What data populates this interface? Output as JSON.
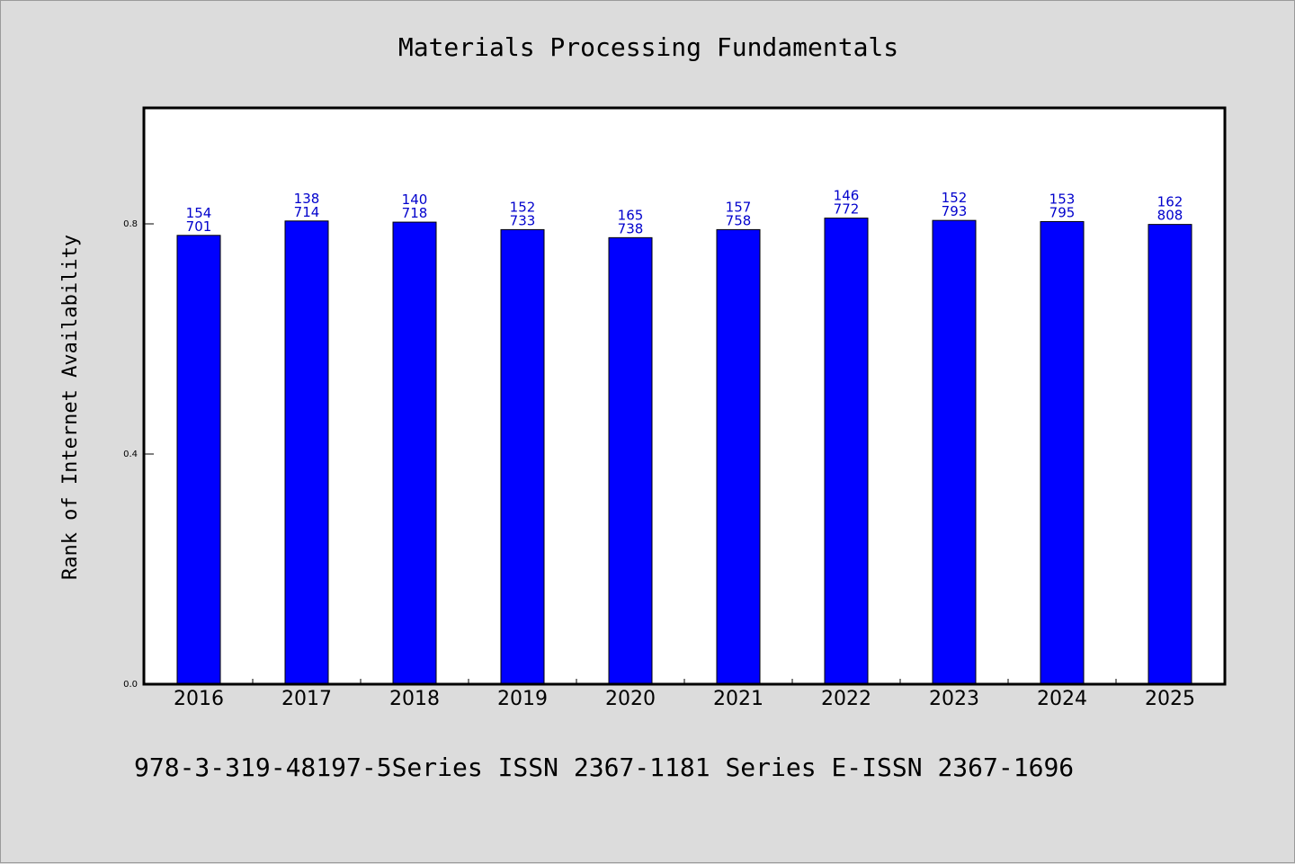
{
  "chart_data": {
    "type": "bar",
    "title": "Materials Processing Fundamentals",
    "xlabel": "",
    "ylabel": "Rank of Internet Availability",
    "categories": [
      "2016",
      "2017",
      "2018",
      "2019",
      "2020",
      "2021",
      "2022",
      "2023",
      "2024",
      "2025"
    ],
    "values": [
      0.78,
      0.805,
      0.803,
      0.79,
      0.776,
      0.79,
      0.81,
      0.806,
      0.804,
      0.799
    ],
    "data_labels_top": [
      "154",
      "138",
      "140",
      "152",
      "165",
      "157",
      "146",
      "152",
      "153",
      "162"
    ],
    "data_labels_bottom": [
      "701",
      "714",
      "718",
      "733",
      "738",
      "758",
      "772",
      "793",
      "795",
      "808"
    ],
    "yticks": [
      0.0,
      0.4,
      0.8
    ],
    "ytick_labels": [
      "0.0",
      "0.4",
      "0.8"
    ],
    "ylim": [
      0,
      1.0
    ],
    "grid": false,
    "bar_color": "#0000ff",
    "label_color": "#0000cc"
  },
  "footer": "978-3-319-48197-5Series ISSN 2367-1181 Series E-ISSN 2367-1696"
}
